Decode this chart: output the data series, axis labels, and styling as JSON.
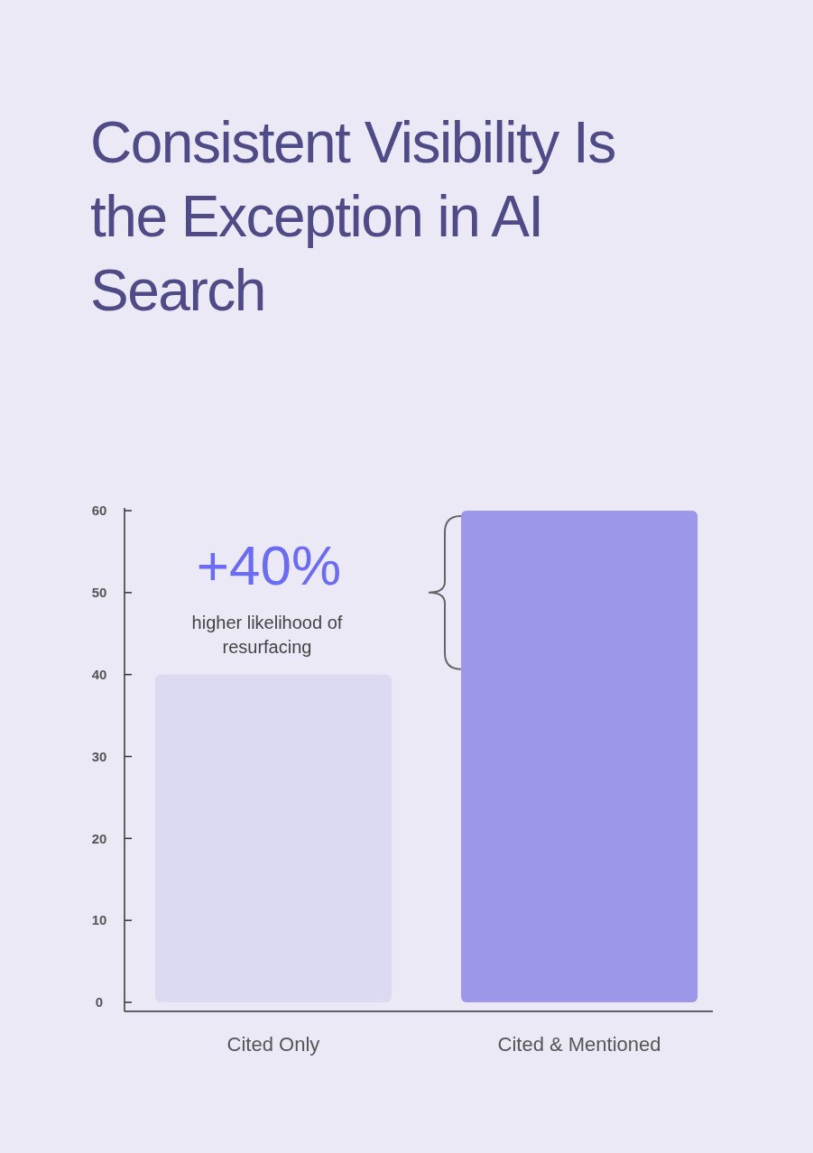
{
  "chart_data": {
    "type": "bar",
    "title": "Consistent Visibility Is the Exception in AI Search",
    "categories": [
      "Cited Only",
      "Cited & Mentioned"
    ],
    "values": [
      40,
      60
    ],
    "colors": [
      "#dcd9f2",
      "#9d97ea"
    ],
    "ylim": [
      0,
      60
    ],
    "yticks": [
      0,
      10,
      20,
      30,
      40,
      50,
      60
    ],
    "grid": false,
    "annotations": [
      "+40%",
      "higher likelihood of resurfacing"
    ]
  }
}
